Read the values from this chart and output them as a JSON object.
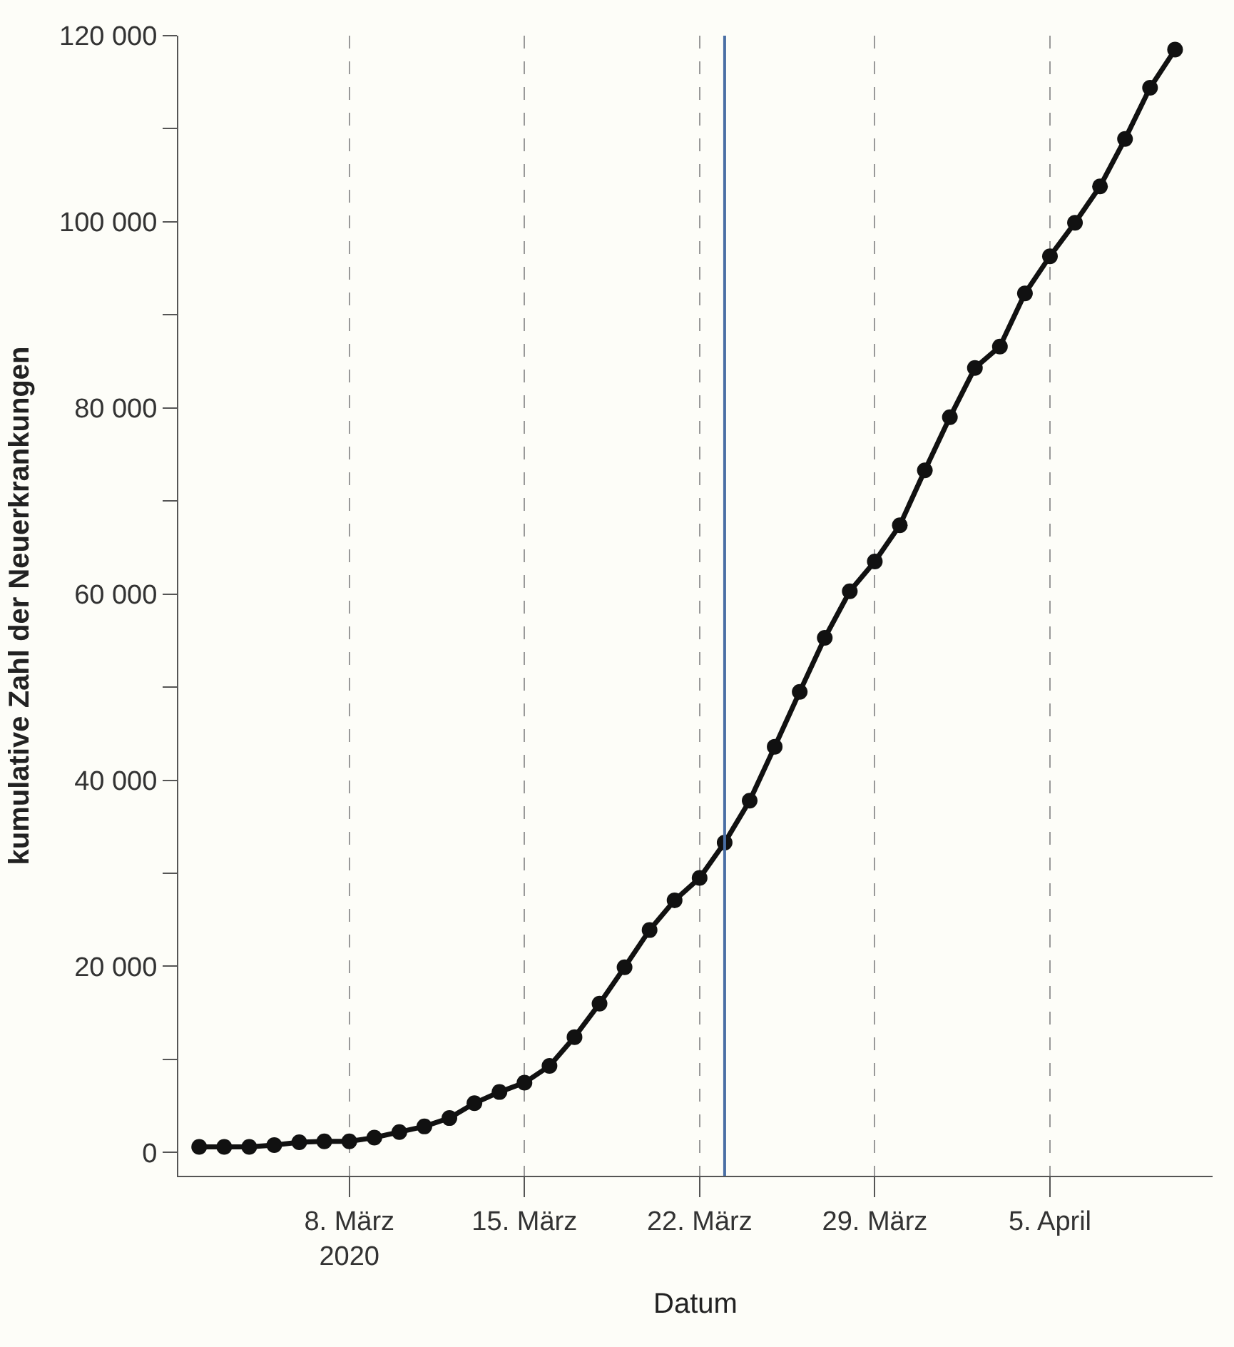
{
  "chart_data": {
    "type": "line",
    "xlabel": "Datum",
    "ylabel": "kumulative Zahl der Neuerkrankungen",
    "x": [
      "2020-03-02",
      "2020-03-03",
      "2020-03-04",
      "2020-03-05",
      "2020-03-06",
      "2020-03-07",
      "2020-03-08",
      "2020-03-09",
      "2020-03-10",
      "2020-03-11",
      "2020-03-12",
      "2020-03-13",
      "2020-03-14",
      "2020-03-15",
      "2020-03-16",
      "2020-03-17",
      "2020-03-18",
      "2020-03-19",
      "2020-03-20",
      "2020-03-21",
      "2020-03-22",
      "2020-03-23",
      "2020-03-24",
      "2020-03-25",
      "2020-03-26",
      "2020-03-27",
      "2020-03-28",
      "2020-03-29",
      "2020-03-30",
      "2020-03-31",
      "2020-04-01",
      "2020-04-02",
      "2020-04-03",
      "2020-04-04",
      "2020-04-05",
      "2020-04-06",
      "2020-04-07",
      "2020-04-08",
      "2020-04-09",
      "2020-04-10"
    ],
    "series": [
      {
        "color": "#111111",
        "values": [
          600,
          600,
          600,
          800,
          1100,
          1200,
          1200,
          1600,
          2200,
          2800,
          3700,
          5300,
          6500,
          7500,
          9300,
          12400,
          16000,
          19900,
          23900,
          27100,
          29500,
          33300,
          37800,
          43600,
          49500,
          55300,
          60300,
          63500,
          67400,
          73300,
          79000,
          84300,
          86600,
          92300,
          96300,
          99900,
          103800,
          108900,
          114400,
          118500
        ]
      }
    ],
    "xlim": [
      "2020-03-01T04:00",
      "2020-04-11T12:00"
    ],
    "xticks": [
      {
        "value": "2020-03-08",
        "label": "8. März\n2020"
      },
      {
        "value": "2020-03-15",
        "label": "15. März"
      },
      {
        "value": "2020-03-22",
        "label": "22. März"
      },
      {
        "value": "2020-03-29",
        "label": "29. März"
      },
      {
        "value": "2020-04-05",
        "label": "5. April"
      }
    ],
    "ylim": [
      -2500,
      120000
    ],
    "yticks": [
      0,
      {
        "value": 10000,
        "label": null
      },
      {
        "value": 20000,
        "label": "20 000"
      },
      {
        "value": 30000,
        "label": null
      },
      {
        "value": 40000,
        "label": "40 000"
      },
      {
        "value": 50000,
        "label": null
      },
      {
        "value": 60000,
        "label": "60 000"
      },
      {
        "value": 70000,
        "label": null
      },
      {
        "value": 80000,
        "label": "80 000"
      },
      {
        "value": 90000,
        "label": null
      },
      {
        "value": 100000,
        "label": "100 000"
      },
      {
        "value": 110000,
        "label": null
      },
      {
        "value": 120000,
        "label": "120 000"
      }
    ],
    "ref_lines": [
      {
        "axis": "x",
        "value": "2020-03-23",
        "color": "#4a6fa5",
        "line_style": "solid"
      }
    ],
    "grid": "x",
    "legend": false,
    "marker": "circle",
    "line_style": "solid"
  }
}
